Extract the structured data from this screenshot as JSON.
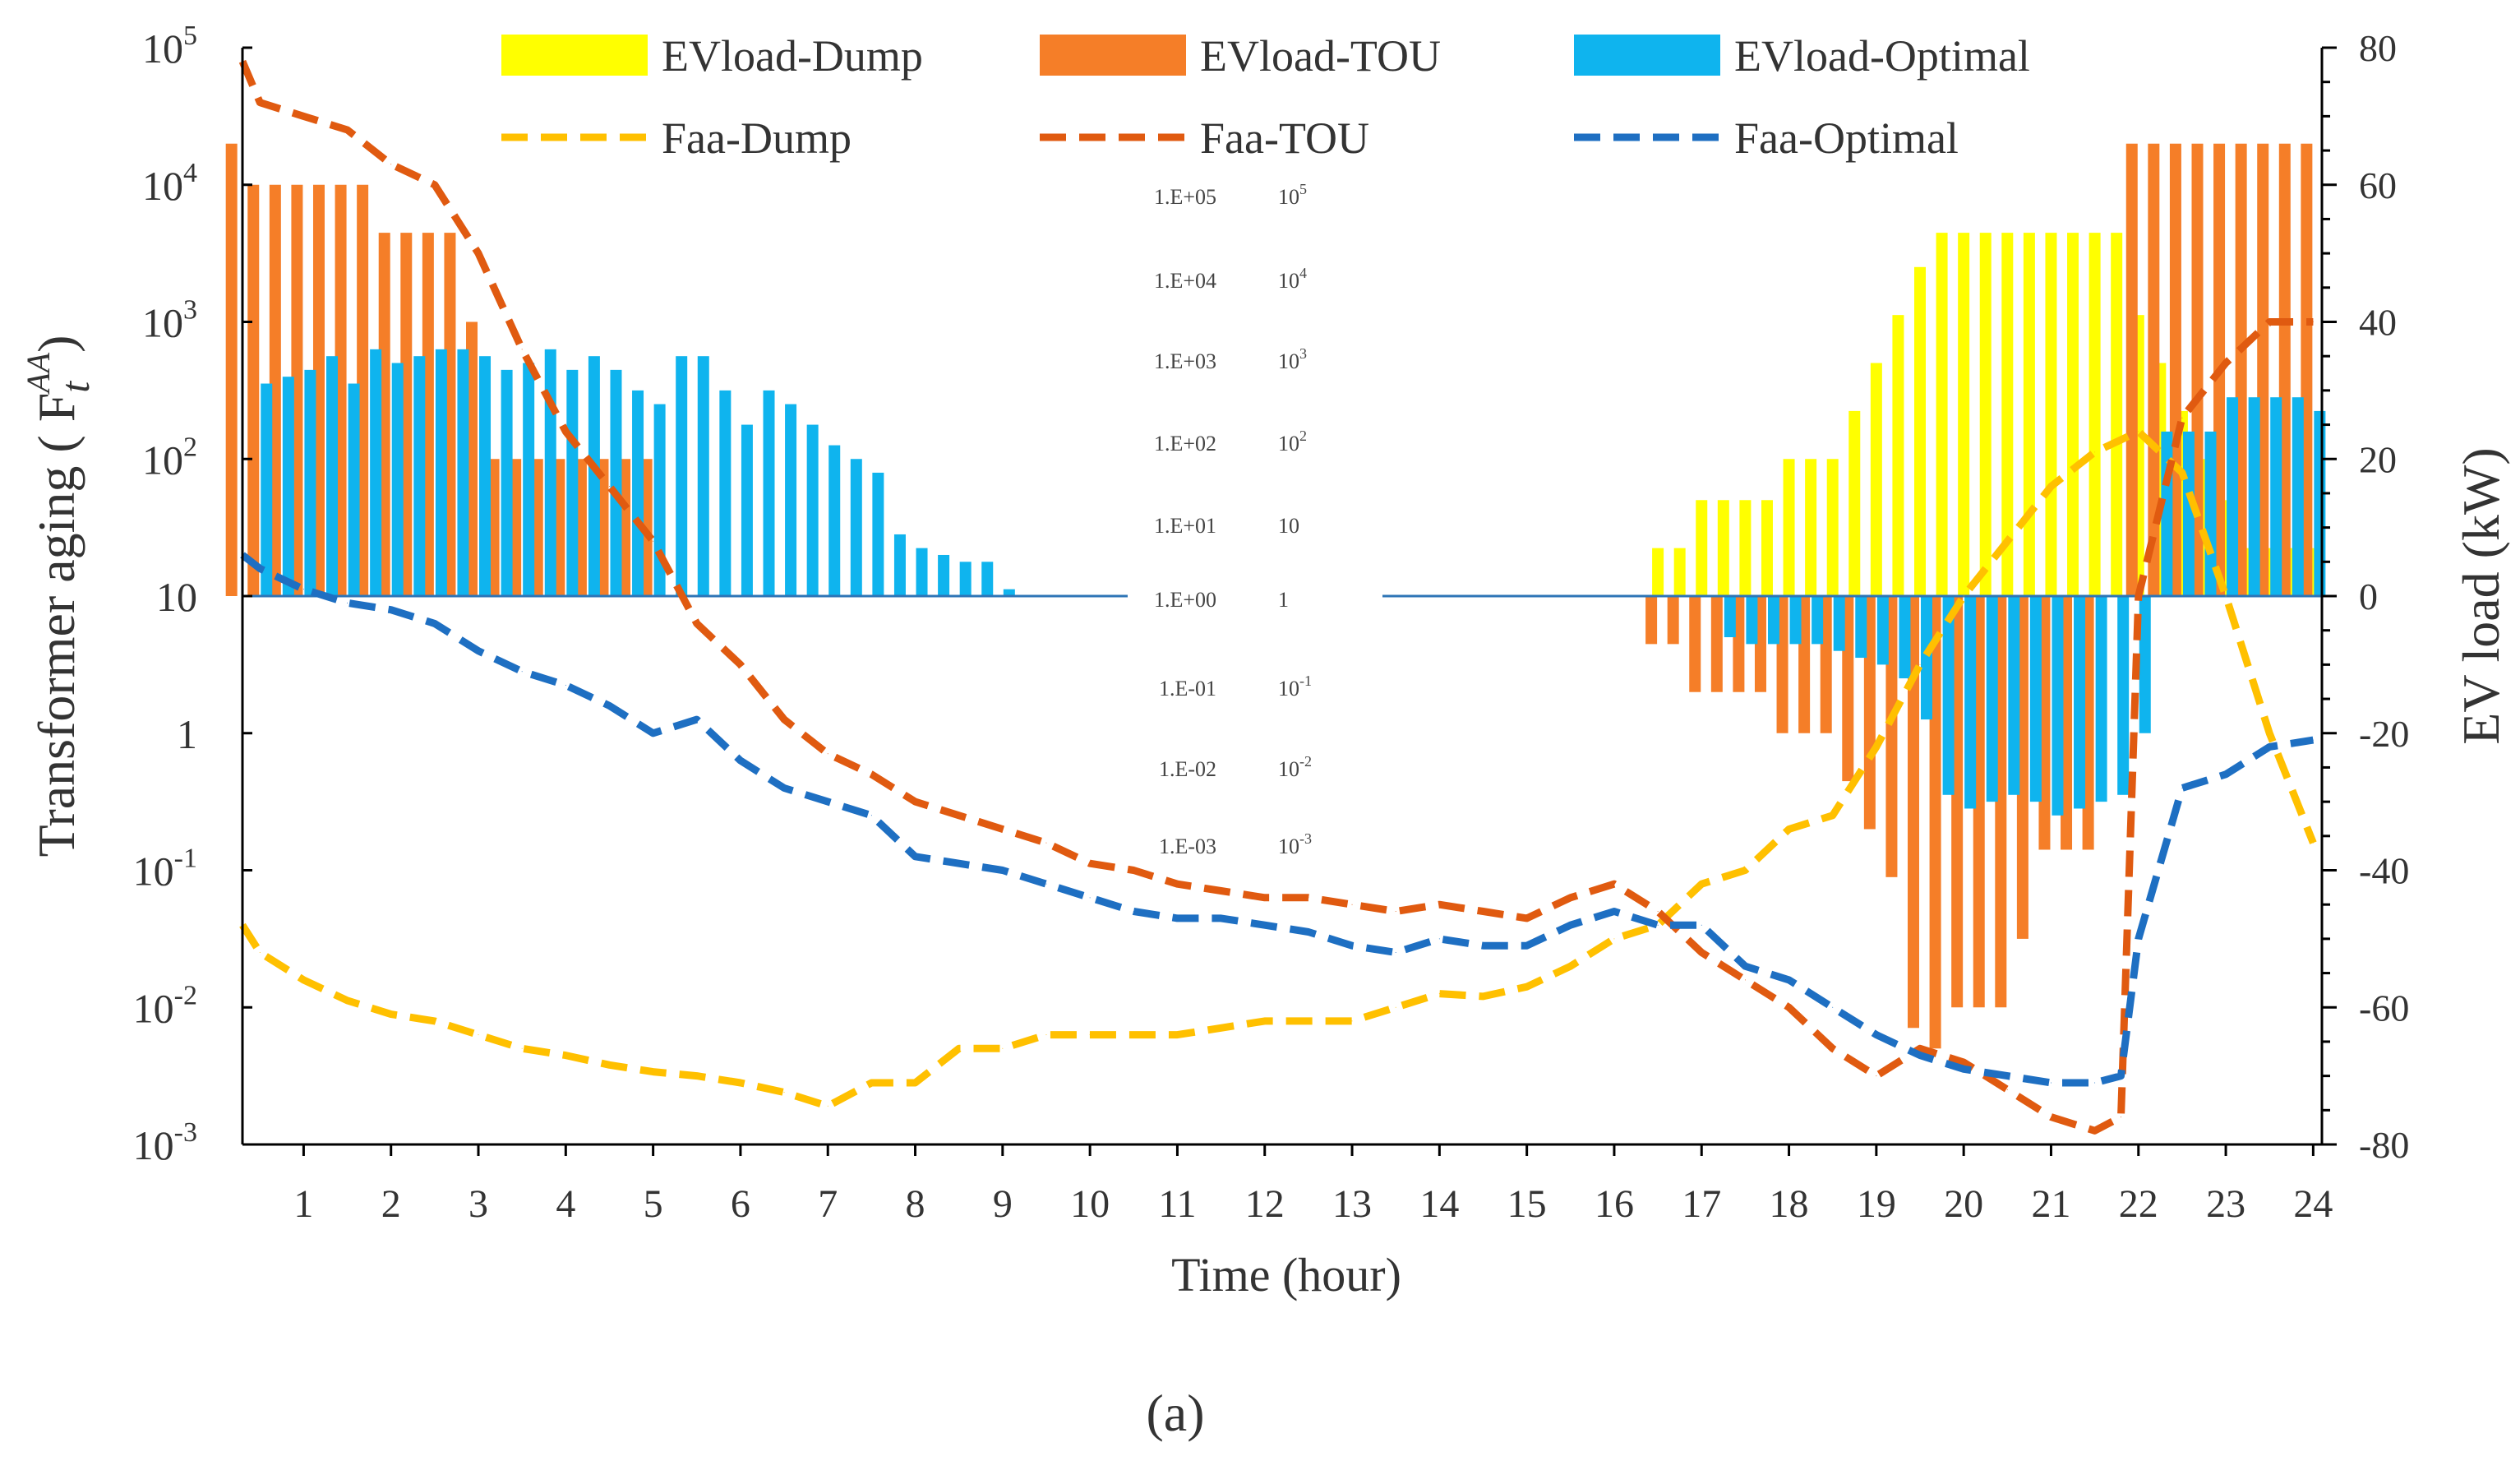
{
  "chart_data": {
    "type": "bar",
    "title": "",
    "caption": "(a)",
    "xlabel": "Time (hour)",
    "ylabel_left": "Transformer aging ( F",
    "ylabel_left_symbol": "AA",
    "ylabel_left_sub": "t",
    "ylabel_left_close": ")",
    "ylabel_right": "EV load (kW)",
    "xlim": [
      0.3,
      24.1
    ],
    "y_left_log_range": [
      -3,
      5
    ],
    "y_right_range": [
      -80,
      80
    ],
    "x_ticks": [
      "1",
      "2",
      "3",
      "4",
      "5",
      "6",
      "7",
      "8",
      "9",
      "10",
      "11",
      "12",
      "13",
      "14",
      "15",
      "16",
      "17",
      "18",
      "19",
      "20",
      "21",
      "22",
      "23",
      "24"
    ],
    "y_left_ticks": [
      {
        "base": "10",
        "exp": "5"
      },
      {
        "base": "10",
        "exp": "4"
      },
      {
        "base": "10",
        "exp": "3"
      },
      {
        "base": "10",
        "exp": "2"
      },
      {
        "base": "10",
        "exp": ""
      },
      {
        "base": "1",
        "exp": ""
      },
      {
        "base": "10",
        "exp": "-1"
      },
      {
        "base": "10",
        "exp": "-2"
      },
      {
        "base": "10",
        "exp": "-3"
      }
    ],
    "y_right_ticks": [
      "80",
      "60",
      "40",
      "20",
      "0",
      "-20",
      "-40",
      "-60",
      "-80"
    ],
    "overlay_labels": [
      {
        "sci": "1.E+05",
        "pow": "10",
        "exp": "5"
      },
      {
        "sci": "1.E+04",
        "pow": "10",
        "exp": "4"
      },
      {
        "sci": "1.E+03",
        "pow": "10",
        "exp": "3"
      },
      {
        "sci": "1.E+02",
        "pow": "10",
        "exp": "2"
      },
      {
        "sci": "1.E+01",
        "pow": "10",
        "exp": ""
      },
      {
        "sci": "1.E+00",
        "pow": "1",
        "exp": ""
      },
      {
        "sci": "1.E-01",
        "pow": "10",
        "exp": "-1"
      },
      {
        "sci": "1.E-02",
        "pow": "10",
        "exp": "-2"
      },
      {
        "sci": "1.E-03",
        "pow": "10",
        "exp": "-3"
      }
    ],
    "legend": [
      {
        "name": "EVload-Dump",
        "kind": "bar",
        "color": "#FFFF00"
      },
      {
        "name": "EVload-TOU",
        "kind": "bar",
        "color": "#F57E28"
      },
      {
        "name": "EVload-Optimal",
        "kind": "bar",
        "color": "#0FB4EE"
      },
      {
        "name": "Faa-Dump",
        "kind": "line",
        "color": "#FFC000"
      },
      {
        "name": "Faa-TOU",
        "kind": "line",
        "color": "#E05A10"
      },
      {
        "name": "Faa-Optimal",
        "kind": "line",
        "color": "#1E6FC2"
      }
    ],
    "bar_series": [
      {
        "name": "EVload-Dump",
        "color": "#FFFF00",
        "x": [
          16.5,
          16.75,
          17,
          17.25,
          17.5,
          17.75,
          18,
          18.25,
          18.5,
          18.75,
          19,
          19.25,
          19.5,
          19.75,
          20,
          20.25,
          20.5,
          20.75,
          21,
          21.25,
          21.5,
          21.75,
          22,
          22.25,
          22.5,
          22.75,
          23,
          23.25,
          23.5,
          23.75,
          24
        ],
        "values": [
          7,
          7,
          14,
          14,
          14,
          14,
          20,
          20,
          20,
          27,
          34,
          41,
          48,
          53,
          53,
          53,
          53,
          53,
          53,
          53,
          53,
          53,
          41,
          34,
          27,
          20,
          14,
          7,
          7,
          7,
          7
        ]
      },
      {
        "name": "EVload-TOU",
        "color": "#F57E28",
        "x": [
          0.25,
          0.5,
          0.75,
          1,
          1.25,
          1.5,
          1.75,
          2,
          2.25,
          2.5,
          2.75,
          3,
          3.25,
          3.5,
          3.75,
          4,
          4.25,
          4.5,
          4.75,
          5,
          16.5,
          16.75,
          17,
          17.25,
          17.5,
          17.75,
          18,
          18.25,
          18.5,
          18.75,
          19,
          19.25,
          19.5,
          19.75,
          20,
          20.25,
          20.5,
          20.75,
          21,
          21.25,
          21.5,
          22,
          22.25,
          22.5,
          22.75,
          23,
          23.25,
          23.5,
          23.75,
          24
        ],
        "values": [
          66,
          60,
          60,
          60,
          60,
          60,
          60,
          53,
          53,
          53,
          53,
          40,
          20,
          20,
          20,
          20,
          20,
          20,
          20,
          20,
          -7,
          -7,
          -14,
          -14,
          -14,
          -14,
          -20,
          -20,
          -20,
          -27,
          -34,
          -41,
          -63,
          -66,
          -60,
          -60,
          -60,
          -50,
          -37,
          -37,
          -37,
          66,
          66,
          66,
          66,
          66,
          66,
          66,
          66,
          66
        ]
      },
      {
        "name": "EVload-Optimal",
        "color": "#0FB4EE",
        "x": [
          0.5,
          0.75,
          1,
          1.25,
          1.5,
          1.75,
          2,
          2.25,
          2.5,
          2.75,
          3,
          3.25,
          3.5,
          3.75,
          4,
          4.25,
          4.5,
          4.75,
          5,
          5.25,
          5.5,
          5.75,
          6,
          6.25,
          6.5,
          6.75,
          7,
          7.25,
          7.5,
          7.75,
          8,
          8.25,
          8.5,
          8.75,
          9,
          17.25,
          17.5,
          17.75,
          18,
          18.25,
          18.5,
          18.75,
          19,
          19.25,
          19.5,
          19.75,
          20,
          20.25,
          20.5,
          20.75,
          21,
          21.25,
          21.5,
          21.75,
          22,
          22.25,
          22.5,
          22.75,
          23,
          23.25,
          23.5,
          23.75,
          24
        ],
        "values": [
          31,
          32,
          33,
          35,
          31,
          36,
          34,
          35,
          36,
          36,
          35,
          33,
          34,
          36,
          33,
          35,
          33,
          30,
          28,
          35,
          35,
          30,
          25,
          30,
          28,
          25,
          22,
          20,
          18,
          9,
          7,
          6,
          5,
          5,
          1,
          -6,
          -7,
          -7,
          -7,
          -7,
          -8,
          -9,
          -10,
          -12,
          -18,
          -29,
          -31,
          -30,
          -29,
          -30,
          -32,
          -31,
          -30,
          -29,
          -20,
          24,
          24,
          24,
          29,
          29,
          29,
          29,
          27
        ]
      }
    ],
    "line_series": [
      {
        "name": "Faa-Dump",
        "color": "#FFC000",
        "x": [
          0.3,
          0.5,
          1,
          1.5,
          2,
          2.5,
          3,
          3.5,
          4,
          4.5,
          5,
          5.5,
          6,
          6.5,
          7,
          7.5,
          8,
          8.5,
          9,
          9.5,
          10,
          10.5,
          11,
          11.5,
          12,
          12.5,
          13,
          13.5,
          14,
          14.5,
          15,
          15.5,
          16,
          16.5,
          17,
          17.5,
          18,
          18.5,
          19,
          19.5,
          20,
          20.5,
          21,
          21.5,
          22,
          22.5,
          23,
          23.5,
          24
        ],
        "log10": [
          -1.4,
          -1.6,
          -1.8,
          -1.95,
          -2.05,
          -2.1,
          -2.2,
          -2.3,
          -2.35,
          -2.42,
          -2.47,
          -2.5,
          -2.55,
          -2.62,
          -2.72,
          -2.55,
          -2.55,
          -2.3,
          -2.3,
          -2.2,
          -2.2,
          -2.2,
          -2.2,
          -2.15,
          -2.1,
          -2.1,
          -2.1,
          -2.0,
          -1.9,
          -1.92,
          -1.85,
          -1.7,
          -1.5,
          -1.4,
          -1.1,
          -1.0,
          -0.7,
          -0.6,
          -0.1,
          0.5,
          1.0,
          1.4,
          1.8,
          2.05,
          2.2,
          1.9,
          1.0,
          0.0,
          -0.8
        ]
      },
      {
        "name": "Faa-TOU",
        "color": "#E05A10",
        "x": [
          0.3,
          0.5,
          1,
          1.5,
          2,
          2.5,
          3,
          3.5,
          4,
          4.5,
          5,
          5.5,
          6,
          6.5,
          7,
          7.5,
          8,
          8.5,
          9,
          9.5,
          10,
          10.5,
          11,
          11.5,
          12,
          12.5,
          13,
          13.5,
          14,
          14.5,
          15,
          15.5,
          16,
          16.5,
          17,
          17.5,
          18,
          18.5,
          19,
          19.5,
          20,
          20.5,
          21,
          21.5,
          21.8,
          22,
          22.5,
          23,
          23.5,
          24
        ],
        "log10": [
          4.9,
          4.6,
          4.5,
          4.4,
          4.15,
          4.0,
          3.5,
          2.8,
          2.2,
          1.8,
          1.4,
          0.8,
          0.5,
          0.1,
          -0.15,
          -0.3,
          -0.5,
          -0.6,
          -0.7,
          -0.8,
          -0.95,
          -1.0,
          -1.1,
          -1.15,
          -1.2,
          -1.2,
          -1.25,
          -1.3,
          -1.25,
          -1.3,
          -1.35,
          -1.2,
          -1.1,
          -1.3,
          -1.6,
          -1.8,
          -2.0,
          -2.3,
          -2.5,
          -2.3,
          -2.4,
          -2.6,
          -2.8,
          -2.9,
          -2.8,
          1.0,
          2.3,
          2.7,
          3.0,
          3.0
        ]
      },
      {
        "name": "Faa-Optimal",
        "color": "#1E6FC2",
        "x": [
          0.3,
          0.5,
          1,
          1.5,
          2,
          2.5,
          3,
          3.5,
          4,
          4.5,
          5,
          5.5,
          6,
          6.5,
          7,
          7.5,
          8,
          8.5,
          9,
          9.5,
          10,
          10.5,
          11,
          11.5,
          12,
          12.5,
          13,
          13.5,
          14,
          14.5,
          15,
          15.5,
          16,
          16.5,
          17,
          17.5,
          18,
          18.5,
          19,
          19.5,
          20,
          20.5,
          21,
          21.5,
          21.8,
          22,
          22.5,
          23,
          23.5,
          24
        ],
        "log10": [
          1.3,
          1.2,
          1.05,
          0.95,
          0.9,
          0.8,
          0.6,
          0.45,
          0.35,
          0.2,
          0.0,
          0.1,
          -0.2,
          -0.4,
          -0.5,
          -0.6,
          -0.9,
          -0.95,
          -1.0,
          -1.1,
          -1.2,
          -1.3,
          -1.35,
          -1.35,
          -1.4,
          -1.45,
          -1.55,
          -1.6,
          -1.5,
          -1.55,
          -1.55,
          -1.4,
          -1.3,
          -1.4,
          -1.4,
          -1.7,
          -1.8,
          -2.0,
          -2.2,
          -2.35,
          -2.45,
          -2.5,
          -2.55,
          -2.55,
          -2.5,
          -1.5,
          -0.4,
          -0.3,
          -0.1,
          -0.05
        ]
      }
    ]
  }
}
